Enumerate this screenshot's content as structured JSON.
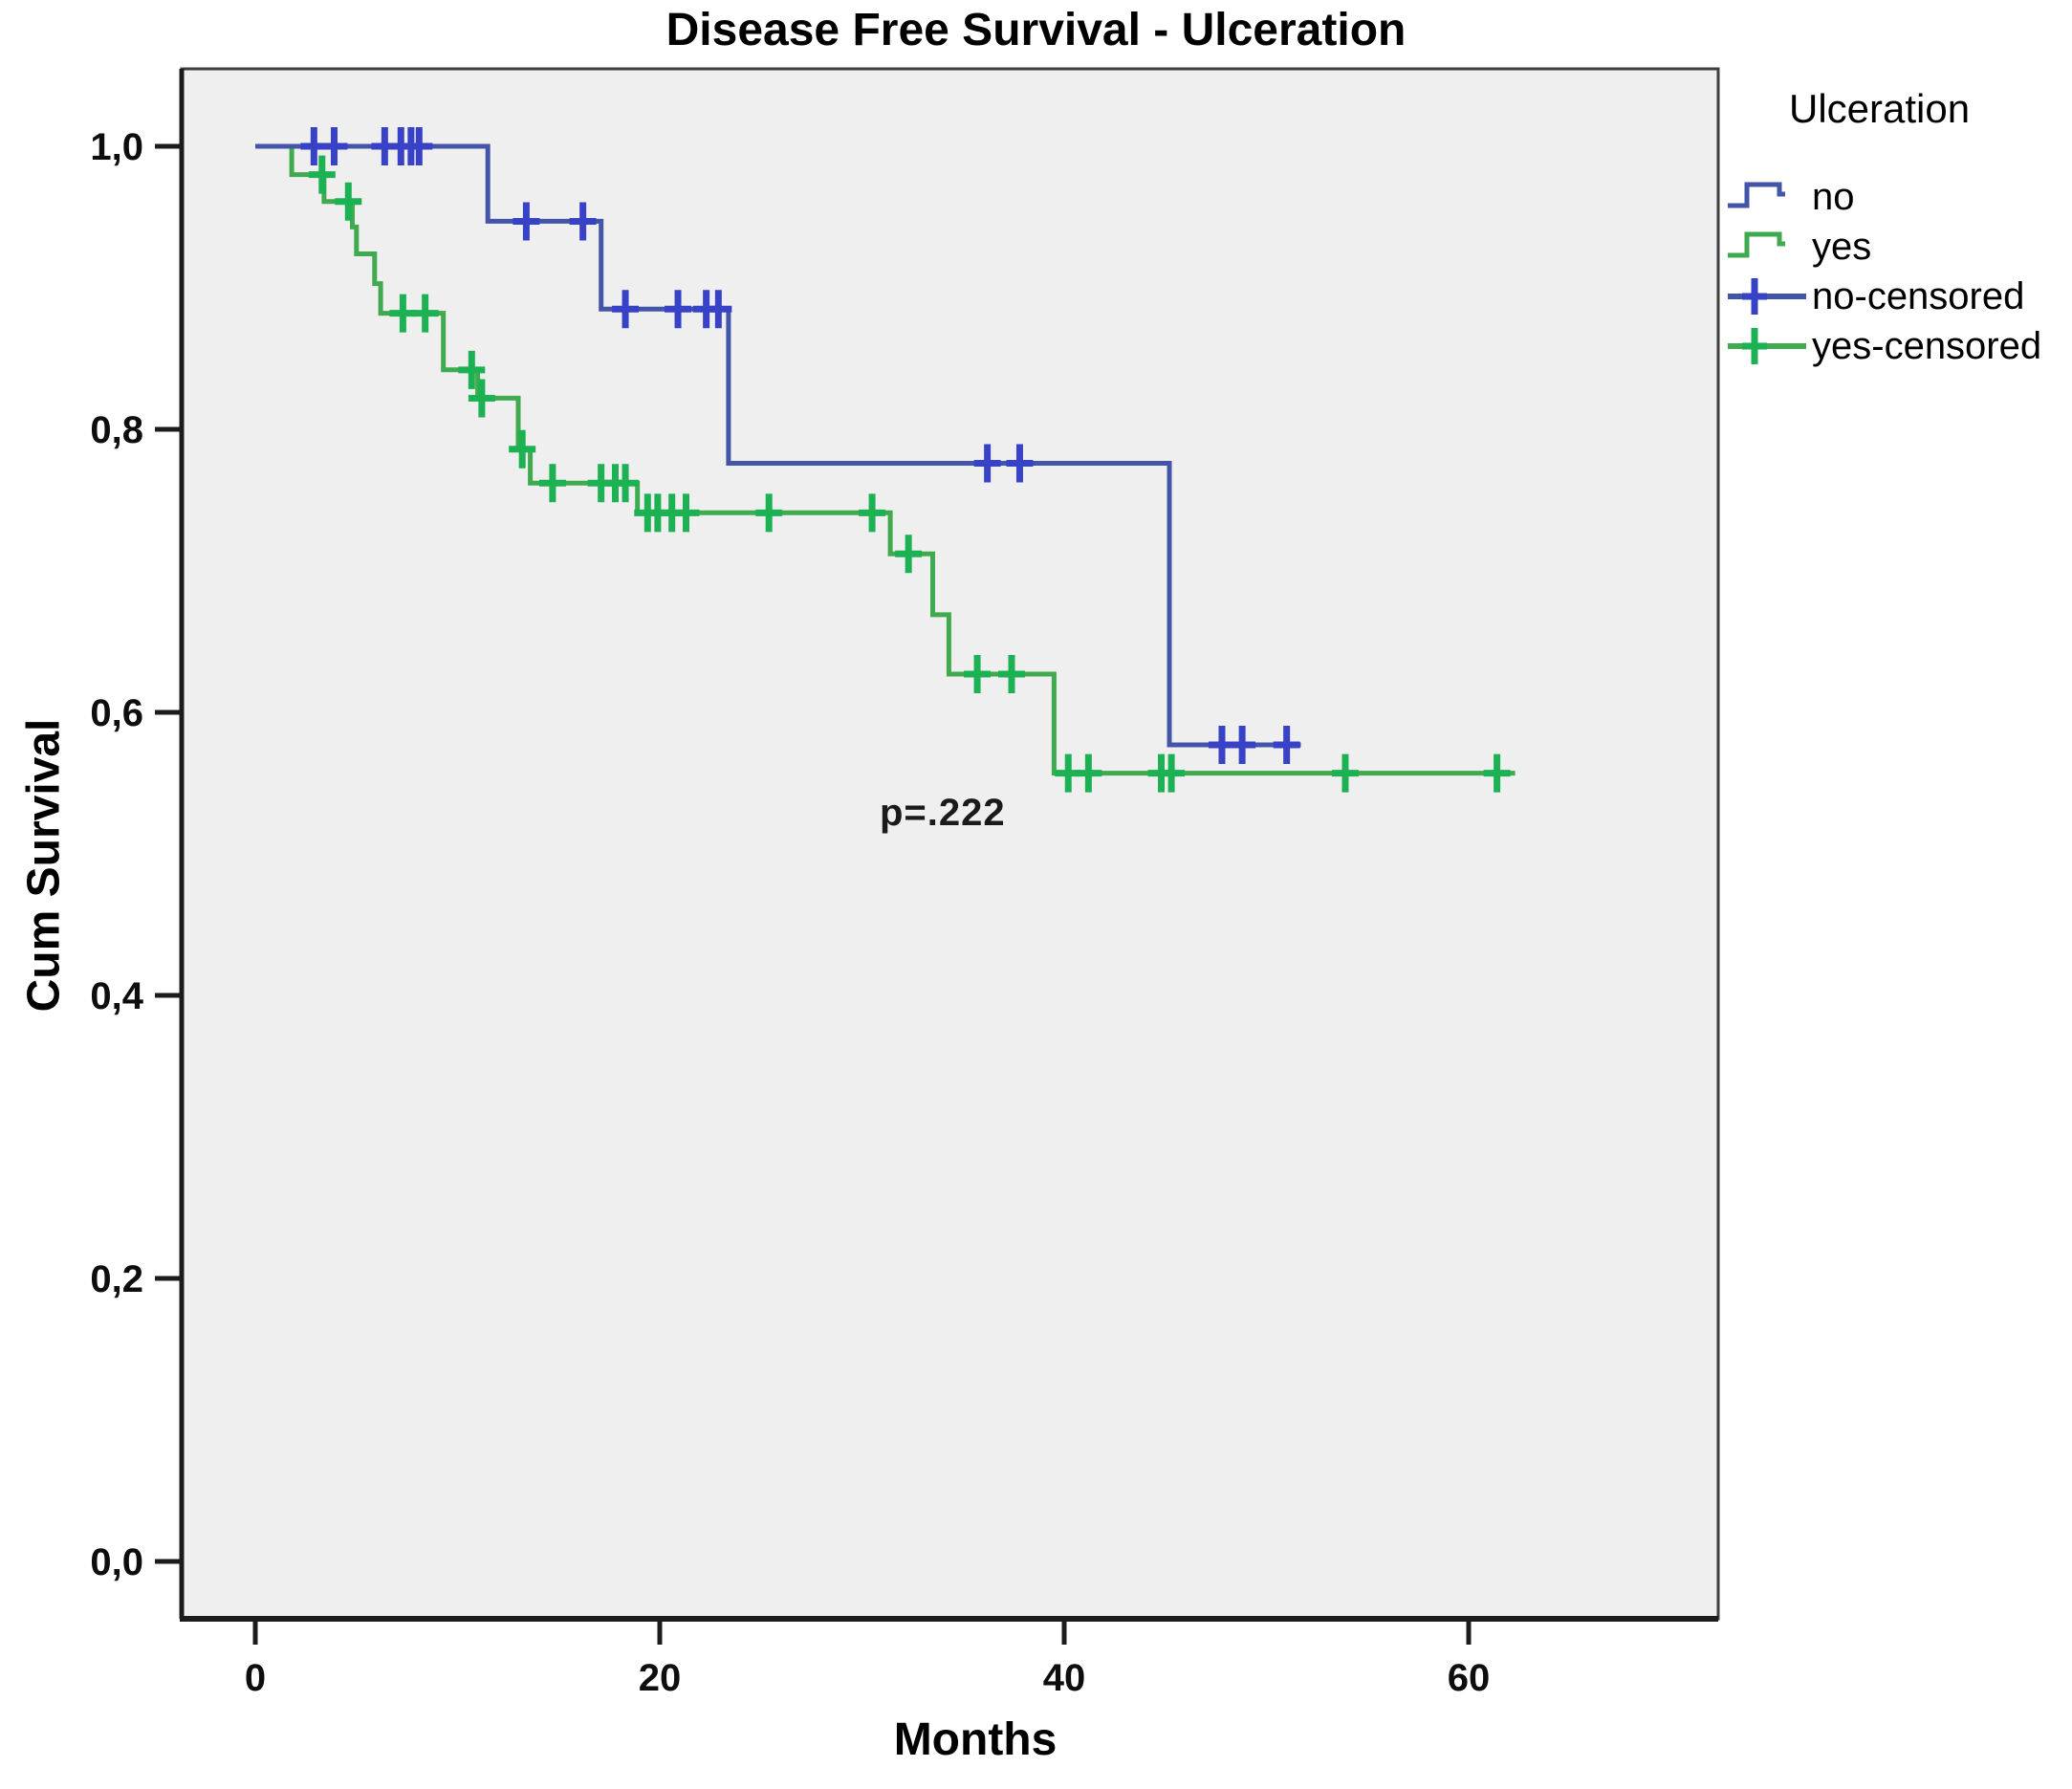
{
  "chart_data": {
    "type": "line",
    "subtype": "kaplan-meier-step-survival",
    "title": "Disease Free Survival - Ulceration",
    "xlabel": "Months",
    "ylabel": "Cum Survival",
    "xlim": [
      -3.6,
      72.4
    ],
    "ylim": [
      -0.055,
      1.055
    ],
    "xticks": [
      0,
      20,
      40,
      60
    ],
    "xtick_labels": [
      "0",
      "20",
      "40",
      "60"
    ],
    "yticks": [
      0.0,
      0.2,
      0.4,
      0.6,
      0.8,
      1.0
    ],
    "ytick_labels": [
      "0,0",
      "0,2",
      "0,4",
      "0,6",
      "0,8",
      "1,0"
    ],
    "grid": false,
    "plot_bg": "#f0efef",
    "axis_color": "#1c1c1c",
    "box_color": "#3e3e3e",
    "annotation": {
      "text": "p=.222",
      "x": 34.3,
      "y": 0.524
    },
    "legend_position": "upper right outside",
    "series": [
      {
        "name": "no",
        "color": "#4355a8",
        "censor_color": "#3742c6",
        "steps": [
          [
            0,
            1.0
          ],
          [
            11.5,
            1.0
          ],
          [
            11.5,
            0.947
          ],
          [
            17.1,
            0.947
          ],
          [
            17.1,
            0.885
          ],
          [
            23.4,
            0.885
          ],
          [
            23.4,
            0.776
          ],
          [
            45.2,
            0.776
          ],
          [
            45.2,
            0.577
          ],
          [
            51.7,
            0.577
          ]
        ],
        "censored": [
          [
            2.9,
            1.0
          ],
          [
            3.9,
            1.0
          ],
          [
            6.4,
            1.0
          ],
          [
            7.2,
            1.0
          ],
          [
            7.7,
            1.0
          ],
          [
            8.1,
            1.0
          ],
          [
            13.4,
            0.947
          ],
          [
            16.2,
            0.947
          ],
          [
            18.3,
            0.885
          ],
          [
            20.9,
            0.885
          ],
          [
            22.3,
            0.885
          ],
          [
            22.9,
            0.885
          ],
          [
            36.2,
            0.776
          ],
          [
            37.8,
            0.776
          ],
          [
            47.8,
            0.577
          ],
          [
            48.8,
            0.577
          ],
          [
            51.0,
            0.577
          ]
        ]
      },
      {
        "name": "yes",
        "color": "#3faa4e",
        "censor_color": "#1cb152",
        "steps": [
          [
            0,
            1.0
          ],
          [
            1.8,
            1.0
          ],
          [
            1.8,
            0.98
          ],
          [
            3.4,
            0.98
          ],
          [
            3.4,
            0.961
          ],
          [
            4.8,
            0.961
          ],
          [
            4.8,
            0.943
          ],
          [
            5.0,
            0.943
          ],
          [
            5.0,
            0.924
          ],
          [
            5.9,
            0.924
          ],
          [
            5.9,
            0.903
          ],
          [
            6.2,
            0.903
          ],
          [
            6.2,
            0.882
          ],
          [
            9.3,
            0.882
          ],
          [
            9.3,
            0.842
          ],
          [
            11.0,
            0.842
          ],
          [
            11.0,
            0.822
          ],
          [
            13.0,
            0.822
          ],
          [
            13.0,
            0.786
          ],
          [
            13.6,
            0.786
          ],
          [
            13.6,
            0.762
          ],
          [
            18.9,
            0.762
          ],
          [
            18.9,
            0.741
          ],
          [
            31.4,
            0.741
          ],
          [
            31.4,
            0.712
          ],
          [
            33.5,
            0.712
          ],
          [
            33.5,
            0.669
          ],
          [
            34.3,
            0.669
          ],
          [
            34.3,
            0.627
          ],
          [
            39.5,
            0.627
          ],
          [
            39.5,
            0.557
          ],
          [
            62.3,
            0.557
          ]
        ],
        "censored": [
          [
            3.3,
            0.98
          ],
          [
            4.6,
            0.961
          ],
          [
            7.3,
            0.882
          ],
          [
            8.4,
            0.882
          ],
          [
            10.7,
            0.842
          ],
          [
            11.2,
            0.822
          ],
          [
            13.2,
            0.786
          ],
          [
            14.7,
            0.762
          ],
          [
            17.1,
            0.762
          ],
          [
            17.8,
            0.762
          ],
          [
            18.3,
            0.762
          ],
          [
            19.4,
            0.741
          ],
          [
            19.9,
            0.741
          ],
          [
            20.6,
            0.741
          ],
          [
            21.3,
            0.741
          ],
          [
            25.4,
            0.741
          ],
          [
            30.5,
            0.741
          ],
          [
            32.3,
            0.712
          ],
          [
            35.7,
            0.627
          ],
          [
            37.4,
            0.627
          ],
          [
            40.2,
            0.557
          ],
          [
            41.2,
            0.557
          ],
          [
            44.8,
            0.557
          ],
          [
            45.3,
            0.557
          ],
          [
            53.9,
            0.557
          ],
          [
            61.4,
            0.557
          ]
        ]
      }
    ]
  },
  "legend": {
    "title": "Ulceration",
    "items": [
      {
        "label": "no"
      },
      {
        "label": "yes"
      },
      {
        "label": "no-censored"
      },
      {
        "label": "yes-censored"
      }
    ]
  }
}
